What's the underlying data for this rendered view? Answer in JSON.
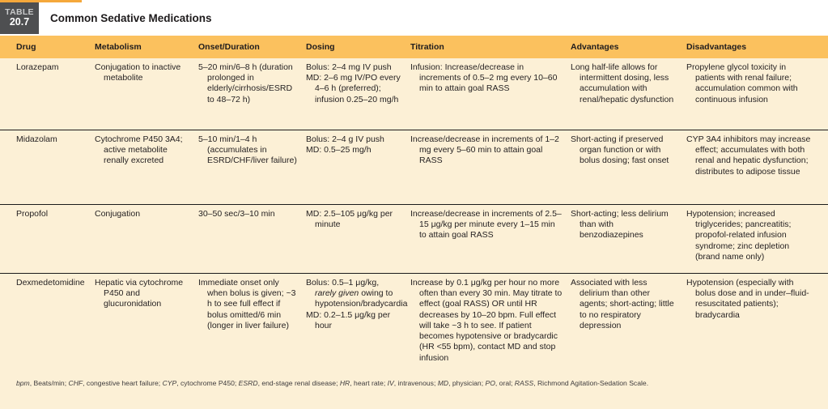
{
  "table_label": {
    "line1": "TABLE",
    "line2": "20.7"
  },
  "title": "Common Sedative Medications",
  "colors": {
    "header_bg": "#fbc15e",
    "body_bg": "#fcf0d6",
    "label_bg": "#4e4f51",
    "accent_orange": "#f5a83b"
  },
  "table": {
    "columns": [
      "Drug",
      "Metabolism",
      "Onset/Duration",
      "Dosing",
      "Titration",
      "Advantages",
      "Disadvantages"
    ],
    "rows": [
      {
        "cells": [
          [
            [
              {
                "t": "Lorazepam"
              }
            ]
          ],
          [
            [
              {
                "t": "Conjugation to inactive metabolite"
              }
            ]
          ],
          [
            [
              {
                "t": "5–20 min/6–8 h (duration prolonged in elderly/cirrhosis/ESRD to 48–72 h)"
              }
            ]
          ],
          [
            [
              {
                "t": "Bolus: 2–4 mg IV push"
              }
            ],
            [
              {
                "t": "MD: 2–6 mg IV/PO every 4–6 h (preferred); infusion 0.25–20 mg/h"
              }
            ]
          ],
          [
            [
              {
                "t": "Infusion: Increase/decrease in increments of 0.5–2 mg every 10–60 min to attain goal RASS"
              }
            ]
          ],
          [
            [
              {
                "t": "Long half-life allows for intermittent dosing, less accumulation with renal/hepatic dysfunction"
              }
            ]
          ],
          [
            [
              {
                "t": "Propylene glycol toxicity in patients with renal failure; accumulation common with continuous infusion"
              }
            ]
          ]
        ]
      },
      {
        "cells": [
          [
            [
              {
                "t": "Midazolam"
              }
            ]
          ],
          [
            [
              {
                "t": "Cytochrome P450 3A4; active metabolite renally excreted"
              }
            ]
          ],
          [
            [
              {
                "t": "5–10 min/1–4 h (accumulates in ESRD/CHF/liver failure)"
              }
            ]
          ],
          [
            [
              {
                "t": "Bolus: 2–4 g IV push"
              }
            ],
            [
              {
                "t": "MD: 0.5–25 mg/h"
              }
            ]
          ],
          [
            [
              {
                "t": "Increase/decrease in increments of 1–2 mg every 5–60 min to attain goal RASS"
              }
            ]
          ],
          [
            [
              {
                "t": "Short-acting if preserved organ function or with bolus dosing; fast onset"
              }
            ]
          ],
          [
            [
              {
                "t": "CYP 3A4 inhibitors may increase effect; accumulates with both renal and hepatic dysfunction; distributes to adipose tissue"
              }
            ]
          ]
        ]
      },
      {
        "cells": [
          [
            [
              {
                "t": "Propofol"
              }
            ]
          ],
          [
            [
              {
                "t": "Conjugation"
              }
            ]
          ],
          [
            [
              {
                "t": "30–50 sec/3–10 min"
              }
            ]
          ],
          [
            [
              {
                "t": "MD: 2.5–105 μg/kg per minute"
              }
            ]
          ],
          [
            [
              {
                "t": "Increase/decrease in increments of 2.5–15 μg/kg per minute every 1–15 min to attain goal RASS"
              }
            ]
          ],
          [
            [
              {
                "t": "Short-acting; less delirium than with benzodiazepines"
              }
            ]
          ],
          [
            [
              {
                "t": "Hypotension; increased triglycerides; pancreatitis; propofol-related infusion syndrome; zinc depletion (brand name only)"
              }
            ]
          ]
        ]
      },
      {
        "cells": [
          [
            [
              {
                "t": "Dexmedetomidine"
              }
            ]
          ],
          [
            [
              {
                "t": "Hepatic via cytochrome P450 and glucuronidation"
              }
            ]
          ],
          [
            [
              {
                "t": "Immediate onset only when bolus is given; ~3 h to see full effect if bolus omitted/6 min (longer in liver failure)"
              }
            ]
          ],
          [
            [
              {
                "t": "Bolus: 0.5–1 μg/kg, "
              },
              {
                "t": "rarely given",
                "i": true
              },
              {
                "t": " owing to hypotension/bradycardia"
              }
            ],
            [
              {
                "t": "MD: 0.2–1.5 μg/kg per hour"
              }
            ]
          ],
          [
            [
              {
                "t": "Increase by 0.1 μg/kg per hour no more often than every 30 min. May titrate to effect (goal RASS) OR until HR decreases by 10–20 bpm. Full effect will take ~3 h to see. If patient becomes hypotensive or bradycardic (HR <55 bpm), contact MD and stop infusion"
              }
            ]
          ],
          [
            [
              {
                "t": "Associated with less delirium than other agents; short-acting; little to no respiratory depression"
              }
            ]
          ],
          [
            [
              {
                "t": "Hypotension (especially with bolus dose and in under–fluid-resuscitated patients); bradycardia"
              }
            ]
          ]
        ]
      }
    ]
  },
  "footnote": [
    {
      "t": "bpm",
      "i": true
    },
    {
      "t": ", Beats/min; "
    },
    {
      "t": "CHF",
      "i": true
    },
    {
      "t": ", congestive heart failure; "
    },
    {
      "t": "CYP",
      "i": true
    },
    {
      "t": ", cytochrome P450; "
    },
    {
      "t": "ESRD",
      "i": true
    },
    {
      "t": ", end-stage renal disease; "
    },
    {
      "t": "HR",
      "i": true
    },
    {
      "t": ", heart rate; "
    },
    {
      "t": "IV",
      "i": true
    },
    {
      "t": ", intravenous; "
    },
    {
      "t": "MD",
      "i": true
    },
    {
      "t": ", physician; "
    },
    {
      "t": "PO",
      "i": true
    },
    {
      "t": ", oral; "
    },
    {
      "t": "RASS",
      "i": true
    },
    {
      "t": ", Richmond Agitation-Sedation Scale."
    }
  ]
}
